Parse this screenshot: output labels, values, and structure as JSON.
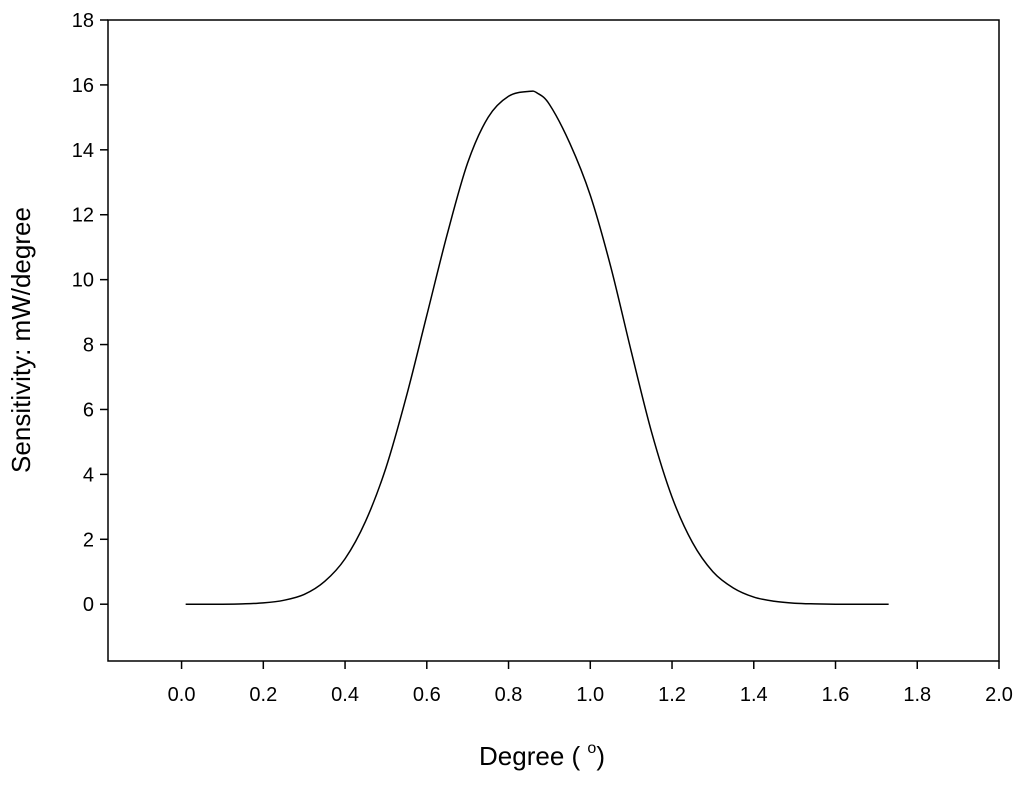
{
  "chart_data": {
    "type": "line",
    "title": "",
    "xlabel": "Degree ( ",
    "xlabel_sup": "o",
    "xlabel_suffix": ")",
    "ylabel": "Sensitivity: mW/degree",
    "xlim": [
      -0.18,
      2.0
    ],
    "ylim": [
      -1.75,
      18
    ],
    "x_ticks": [
      0.0,
      0.2,
      0.4,
      0.6,
      0.8,
      1.0,
      1.2,
      1.4,
      1.6,
      1.8,
      2.0
    ],
    "x_tick_labels": [
      "0.0",
      "0.2",
      "0.4",
      "0.6",
      "0.8",
      "1.0",
      "1.2",
      "1.4",
      "1.6",
      "1.8",
      "2.0"
    ],
    "y_ticks": [
      0,
      2,
      4,
      6,
      8,
      10,
      12,
      14,
      16,
      18
    ],
    "y_tick_labels": [
      "0",
      "2",
      "4",
      "6",
      "8",
      "10",
      "12",
      "14",
      "16",
      "18"
    ],
    "grid": false,
    "legend": "none",
    "line_color": "#000000",
    "series": [
      {
        "x": [
          0.01,
          0.05,
          0.1,
          0.15,
          0.2,
          0.25,
          0.3,
          0.35,
          0.4,
          0.45,
          0.5,
          0.55,
          0.6,
          0.65,
          0.7,
          0.75,
          0.8,
          0.85,
          0.87,
          0.9,
          0.95,
          1.0,
          1.05,
          1.1,
          1.15,
          1.2,
          1.25,
          1.3,
          1.35,
          1.4,
          1.45,
          1.5,
          1.55,
          1.6,
          1.65,
          1.7,
          1.73
        ],
        "y": [
          0.0,
          0.0,
          0.0,
          0.01,
          0.04,
          0.12,
          0.3,
          0.7,
          1.4,
          2.55,
          4.2,
          6.4,
          8.9,
          11.4,
          13.6,
          15.0,
          15.65,
          15.8,
          15.75,
          15.4,
          14.2,
          12.6,
          10.4,
          7.8,
          5.3,
          3.3,
          1.9,
          1.0,
          0.5,
          0.22,
          0.09,
          0.03,
          0.01,
          0.0,
          0.0,
          0.0,
          0.0
        ]
      }
    ]
  }
}
